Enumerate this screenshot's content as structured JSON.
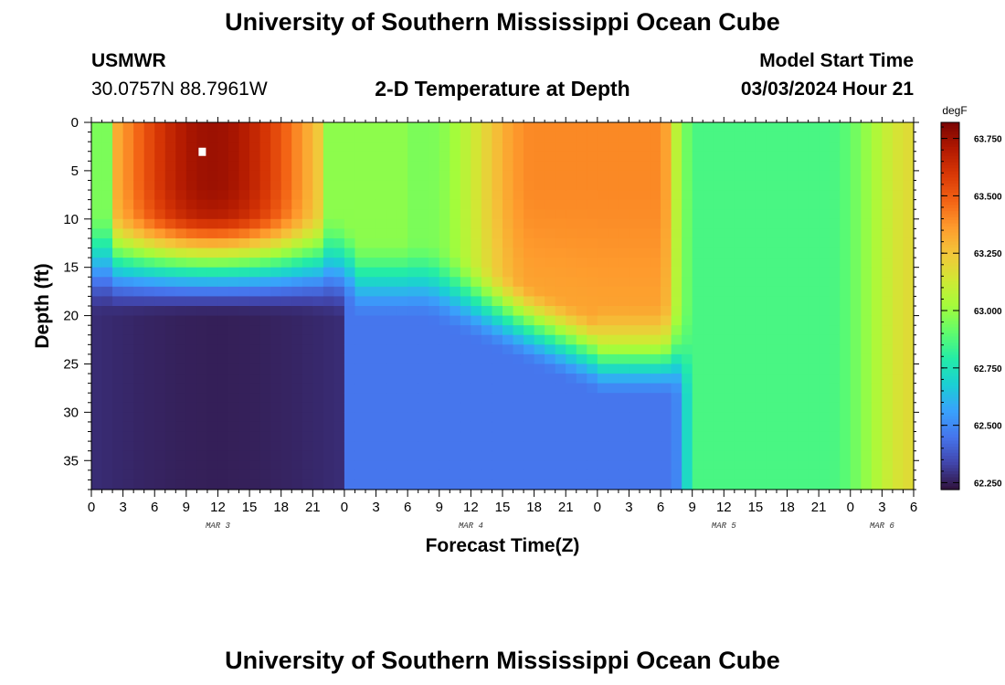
{
  "page": {
    "title": "University of Southern Mississippi Ocean Cube",
    "footer_title": "University of Southern Mississippi Ocean Cube"
  },
  "station": {
    "id": "USMWR",
    "coords": "30.0757N  88.7961W"
  },
  "model": {
    "label": "Model Start Time",
    "time": "03/03/2024 Hour 21"
  },
  "chart_data": {
    "type": "heatmap",
    "title": "2-D Temperature at Depth",
    "xlabel": "Forecast Time(Z)",
    "ylabel": "Depth (ft)",
    "x_hours": [
      0,
      78
    ],
    "y_range_ft": [
      0,
      38
    ],
    "x_tick_labels": [
      "0",
      "3",
      "6",
      "9",
      "12",
      "15",
      "18",
      "21",
      "0",
      "3",
      "6",
      "9",
      "12",
      "15",
      "18",
      "21",
      "0",
      "3",
      "6",
      "9",
      "12",
      "15",
      "18",
      "21",
      "0",
      "3",
      "6"
    ],
    "x_date_labels": [
      {
        "hour": 12,
        "label": "MAR 3"
      },
      {
        "hour": 36,
        "label": "MAR 4"
      },
      {
        "hour": 60,
        "label": "MAR 5"
      },
      {
        "hour": 75,
        "label": "MAR 6"
      }
    ],
    "y_ticks": [
      0,
      5,
      10,
      15,
      20,
      25,
      30,
      35
    ],
    "colorbar": {
      "unit": "degF",
      "min": 62.22,
      "max": 63.82,
      "ticks": [
        "63.750",
        "63.500",
        "63.250",
        "63.000",
        "62.750",
        "62.500",
        "62.250"
      ],
      "tick_values": [
        63.75,
        63.5,
        63.25,
        63.0,
        62.75,
        62.5,
        62.25
      ],
      "colors": [
        "#30123b",
        "#4145ab",
        "#4675ed",
        "#39a2fc",
        "#1bcfd4",
        "#24eca6",
        "#61fc6c",
        "#a4fc3b",
        "#d1e834",
        "#f3c63a",
        "#fe9b2d",
        "#f36315",
        "#d93806",
        "#b11901",
        "#7a0403"
      ]
    },
    "marker": {
      "hour": 10,
      "depth_ft": 3
    }
  },
  "colors": {
    "background": "#ffffff",
    "text": "#000000"
  }
}
